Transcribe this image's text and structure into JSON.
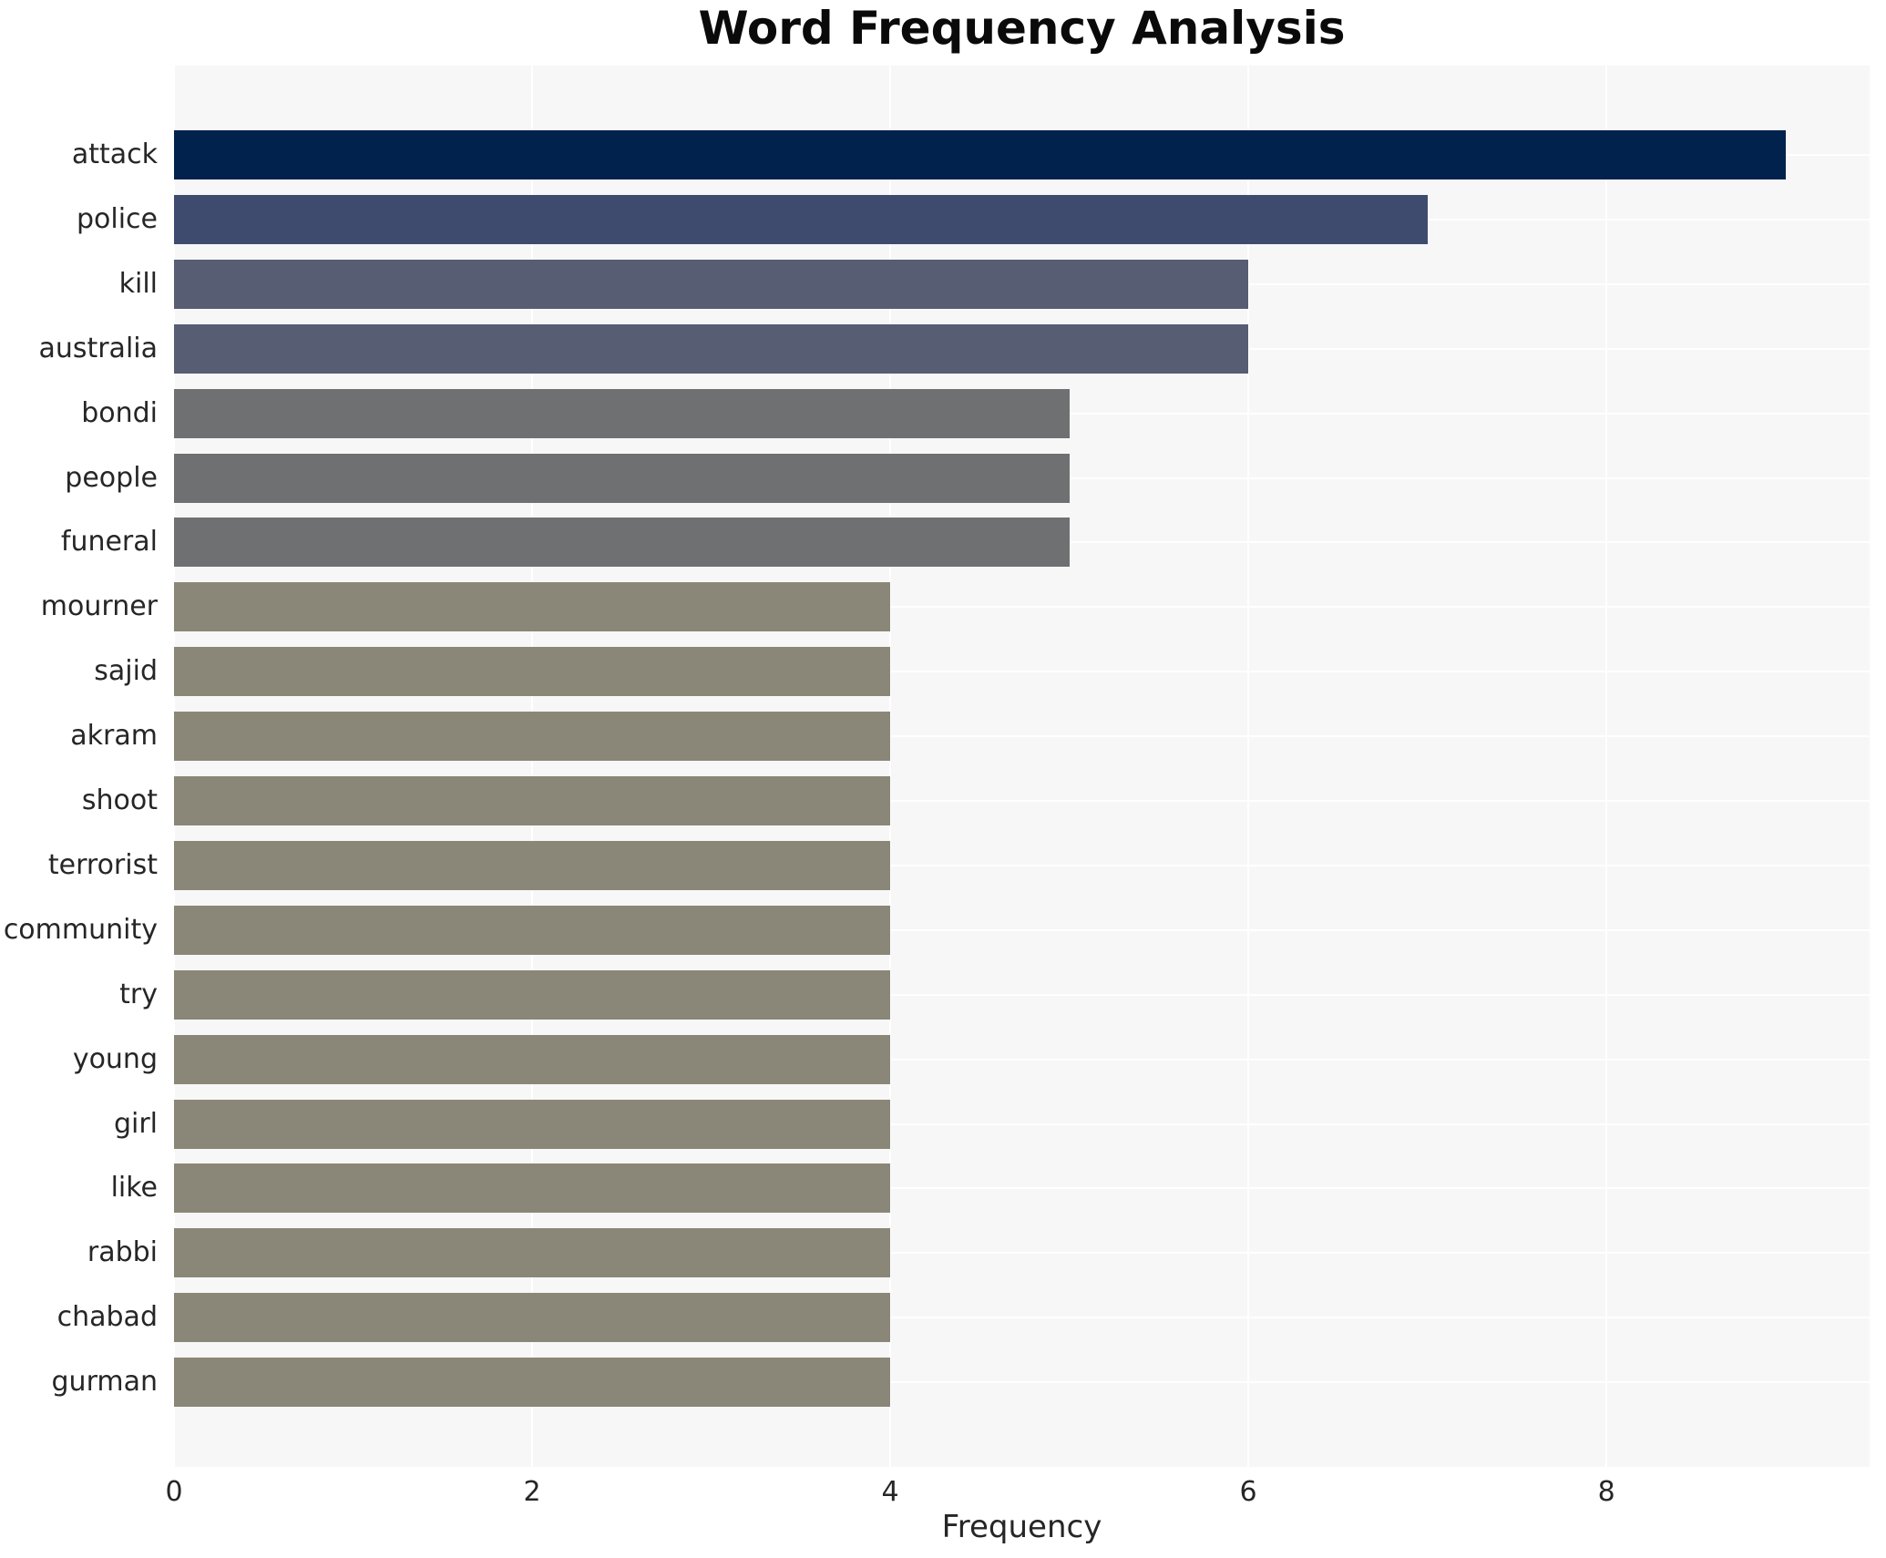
{
  "figure": {
    "background": "#ffffff",
    "plot_background": "#f7f7f7",
    "gridline_color": "#ffffff",
    "text_color": "#262626",
    "title_color": "#0a0a0a"
  },
  "chart_data": {
    "type": "bar",
    "orientation": "horizontal",
    "title": "Word Frequency Analysis",
    "xlabel": "Frequency",
    "ylabel": "",
    "categories": [
      "attack",
      "police",
      "kill",
      "australia",
      "bondi",
      "people",
      "funeral",
      "mourner",
      "sajid",
      "akram",
      "shoot",
      "terrorist",
      "community",
      "try",
      "young",
      "girl",
      "like",
      "rabbi",
      "chabad",
      "gurman"
    ],
    "values": [
      9,
      7,
      6,
      6,
      5,
      5,
      5,
      4,
      4,
      4,
      4,
      4,
      4,
      4,
      4,
      4,
      4,
      4,
      4,
      4
    ],
    "bar_colors": [
      "#02224e",
      "#3e4a6e",
      "#575d72",
      "#575d72",
      "#6f7071",
      "#6f7071",
      "#6f7071",
      "#8a8778",
      "#8a8778",
      "#8a8778",
      "#8a8778",
      "#8a8778",
      "#8a8778",
      "#8a8778",
      "#8a8778",
      "#8a8778",
      "#8a8778",
      "#8a8778",
      "#8a8778",
      "#8a8778"
    ],
    "xticks": [
      0,
      2,
      4,
      6,
      8
    ],
    "xlim": [
      0,
      9.47
    ],
    "grid": true,
    "legend": false
  }
}
